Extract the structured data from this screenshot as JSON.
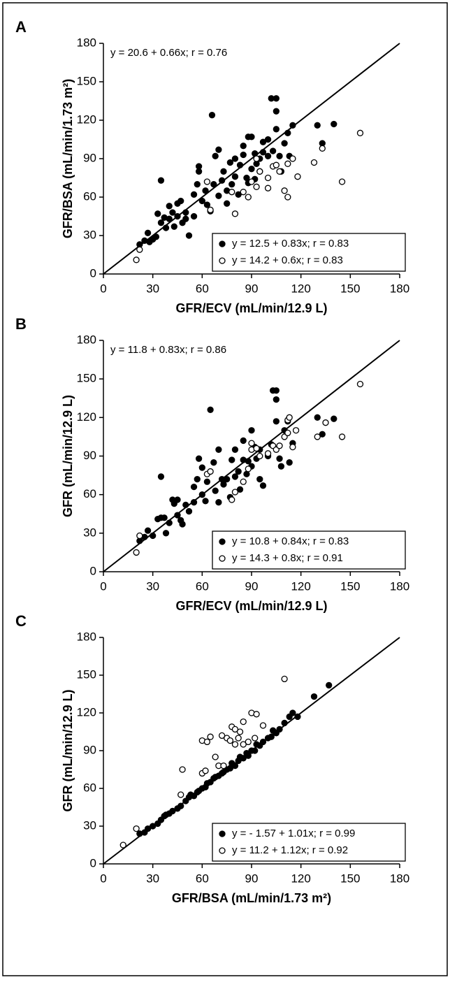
{
  "chart_data": [
    {
      "type": "scatter",
      "panel_label": "A",
      "equation": "y = 20.6 + 0.66x; r = 0.76",
      "xlabel": "GFR/ECV (mL/min/12.9 L)",
      "ylabel": "GFR/BSA (mL/min/1.73 m²)",
      "xlim": [
        0,
        180
      ],
      "ylim": [
        0,
        180
      ],
      "xticks": [
        0,
        30,
        60,
        90,
        120,
        150,
        180
      ],
      "yticks": [
        0,
        30,
        60,
        90,
        120,
        150,
        180
      ],
      "legend": "bottom right",
      "series": [
        {
          "name": "y = 12.5 + 0.83x; r = 0.83",
          "color": "#000000",
          "marker": "filled",
          "x": [
            22,
            25,
            27,
            28,
            30,
            32,
            33,
            35,
            35,
            37,
            38,
            40,
            40,
            42,
            43,
            45,
            45,
            47,
            48,
            50,
            50,
            52,
            55,
            55,
            57,
            58,
            58,
            60,
            62,
            63,
            65,
            66,
            67,
            68,
            70,
            70,
            72,
            73,
            75,
            75,
            77,
            78,
            80,
            80,
            82,
            83,
            85,
            85,
            87,
            88,
            88,
            90,
            90,
            92,
            93,
            95,
            95,
            97,
            100,
            100,
            102,
            103,
            105,
            105,
            105,
            107,
            108,
            110,
            112,
            113,
            115,
            130,
            133,
            140,
            97,
            92
          ],
          "y": [
            23,
            26,
            32,
            25,
            27,
            29,
            47,
            73,
            40,
            44,
            36,
            43,
            53,
            48,
            37,
            55,
            45,
            57,
            40,
            43,
            48,
            30,
            62,
            45,
            70,
            80,
            84,
            57,
            65,
            54,
            49,
            124,
            70,
            92,
            97,
            61,
            73,
            80,
            65,
            55,
            87,
            70,
            76,
            90,
            62,
            85,
            93,
            100,
            75,
            107,
            71,
            82,
            107,
            94,
            86,
            90,
            80,
            103,
            92,
            105,
            137,
            96,
            127,
            137,
            113,
            92,
            80,
            102,
            110,
            92,
            116,
            116,
            102,
            117,
            95,
            74
          ]
        },
        {
          "name": "y = 14.2 + 0.6x; r = 0.83",
          "color": "#000000",
          "marker": "open",
          "x": [
            20,
            22,
            63,
            65,
            78,
            80,
            85,
            88,
            90,
            93,
            95,
            100,
            103,
            105,
            107,
            110,
            112,
            112,
            115,
            118,
            128,
            133,
            145,
            156,
            100,
            93
          ],
          "y": [
            11,
            19,
            72,
            50,
            64,
            47,
            64,
            60,
            72,
            68,
            80,
            75,
            84,
            85,
            80,
            65,
            60,
            86,
            90,
            76,
            87,
            98,
            72,
            110,
            67,
            90
          ]
        }
      ]
    },
    {
      "type": "scatter",
      "panel_label": "B",
      "equation": "y = 11.8 + 0.83x; r = 0.86",
      "xlabel": "GFR/ECV (mL/min/12.9 L)",
      "ylabel": "GFR (mL/min/12.9 L)",
      "xlim": [
        0,
        180
      ],
      "ylim": [
        0,
        180
      ],
      "xticks": [
        0,
        30,
        60,
        90,
        120,
        150,
        180
      ],
      "yticks": [
        0,
        30,
        60,
        90,
        120,
        150,
        180
      ],
      "legend": "bottom right",
      "series": [
        {
          "name": "y = 10.8 + 0.84x; r = 0.83",
          "color": "#000000",
          "marker": "filled",
          "x": [
            22,
            25,
            27,
            30,
            33,
            35,
            35,
            37,
            38,
            40,
            42,
            43,
            45,
            45,
            47,
            48,
            50,
            52,
            55,
            55,
            57,
            58,
            60,
            60,
            62,
            63,
            65,
            67,
            68,
            70,
            70,
            72,
            73,
            75,
            77,
            78,
            80,
            80,
            82,
            83,
            85,
            85,
            87,
            88,
            90,
            90,
            92,
            93,
            95,
            95,
            97,
            100,
            102,
            103,
            105,
            105,
            105,
            107,
            108,
            110,
            112,
            113,
            115,
            130,
            133,
            140
          ],
          "y": [
            24,
            27,
            32,
            28,
            41,
            74,
            42,
            42,
            30,
            38,
            56,
            53,
            56,
            44,
            40,
            37,
            52,
            47,
            54,
            66,
            72,
            88,
            81,
            60,
            55,
            70,
            126,
            85,
            63,
            95,
            54,
            72,
            68,
            72,
            58,
            87,
            95,
            74,
            78,
            64,
            87,
            102,
            76,
            86,
            110,
            82,
            97,
            88,
            95,
            72,
            67,
            90,
            99,
            141,
            134,
            141,
            117,
            88,
            82,
            110,
            117,
            85,
            100,
            120,
            107,
            119
          ]
        },
        {
          "name": "y = 14.3 + 0.8x; r = 0.91",
          "color": "#000000",
          "marker": "open",
          "x": [
            20,
            22,
            63,
            65,
            78,
            80,
            85,
            88,
            90,
            90,
            93,
            95,
            100,
            103,
            105,
            107,
            110,
            112,
            112,
            113,
            115,
            117,
            130,
            135,
            145,
            156
          ],
          "y": [
            15,
            28,
            76,
            78,
            56,
            62,
            70,
            80,
            95,
            100,
            96,
            90,
            92,
            98,
            95,
            98,
            105,
            108,
            118,
            120,
            97,
            110,
            105,
            116,
            105,
            146
          ]
        }
      ]
    },
    {
      "type": "scatter",
      "panel_label": "C",
      "xlabel": "GFR/BSA (mL/min/1.73 m²)",
      "ylabel": "GFR (mL/min/12.9 L)",
      "xlim": [
        0,
        180
      ],
      "ylim": [
        0,
        180
      ],
      "xticks": [
        0,
        30,
        60,
        90,
        120,
        150,
        180
      ],
      "yticks": [
        0,
        30,
        60,
        90,
        120,
        150,
        180
      ],
      "legend": "bottom right",
      "series": [
        {
          "name": "y =  - 1.57 + 1.01x; r = 0.99",
          "color": "#000000",
          "marker": "filled",
          "x": [
            22,
            25,
            27,
            30,
            33,
            35,
            37,
            38,
            40,
            42,
            45,
            47,
            50,
            52,
            53,
            55,
            57,
            58,
            60,
            62,
            63,
            65,
            67,
            68,
            70,
            72,
            73,
            75,
            77,
            78,
            80,
            82,
            83,
            85,
            87,
            88,
            90,
            92,
            93,
            95,
            97,
            100,
            102,
            103,
            105,
            107,
            110,
            113,
            115,
            118,
            128,
            137
          ],
          "y": [
            24,
            25,
            28,
            30,
            32,
            35,
            38,
            39,
            40,
            42,
            44,
            46,
            50,
            53,
            55,
            54,
            57,
            58,
            60,
            61,
            64,
            65,
            68,
            69,
            70,
            72,
            73,
            75,
            76,
            80,
            78,
            82,
            85,
            84,
            88,
            86,
            90,
            90,
            95,
            94,
            97,
            100,
            101,
            106,
            104,
            107,
            112,
            117,
            120,
            117,
            133,
            142
          ]
        },
        {
          "name": "y = 11.2 + 1.12x; r = 0.92",
          "color": "#000000",
          "marker": "open",
          "x": [
            12,
            20,
            48,
            47,
            60,
            60,
            62,
            63,
            65,
            68,
            70,
            72,
            73,
            75,
            77,
            78,
            80,
            80,
            82,
            83,
            85,
            85,
            88,
            90,
            92,
            93,
            97,
            110
          ],
          "y": [
            15,
            28,
            75,
            55,
            72,
            98,
            74,
            97,
            101,
            85,
            78,
            102,
            78,
            100,
            98,
            109,
            95,
            107,
            100,
            105,
            95,
            113,
            97,
            120,
            100,
            119,
            110,
            147
          ]
        }
      ]
    }
  ]
}
